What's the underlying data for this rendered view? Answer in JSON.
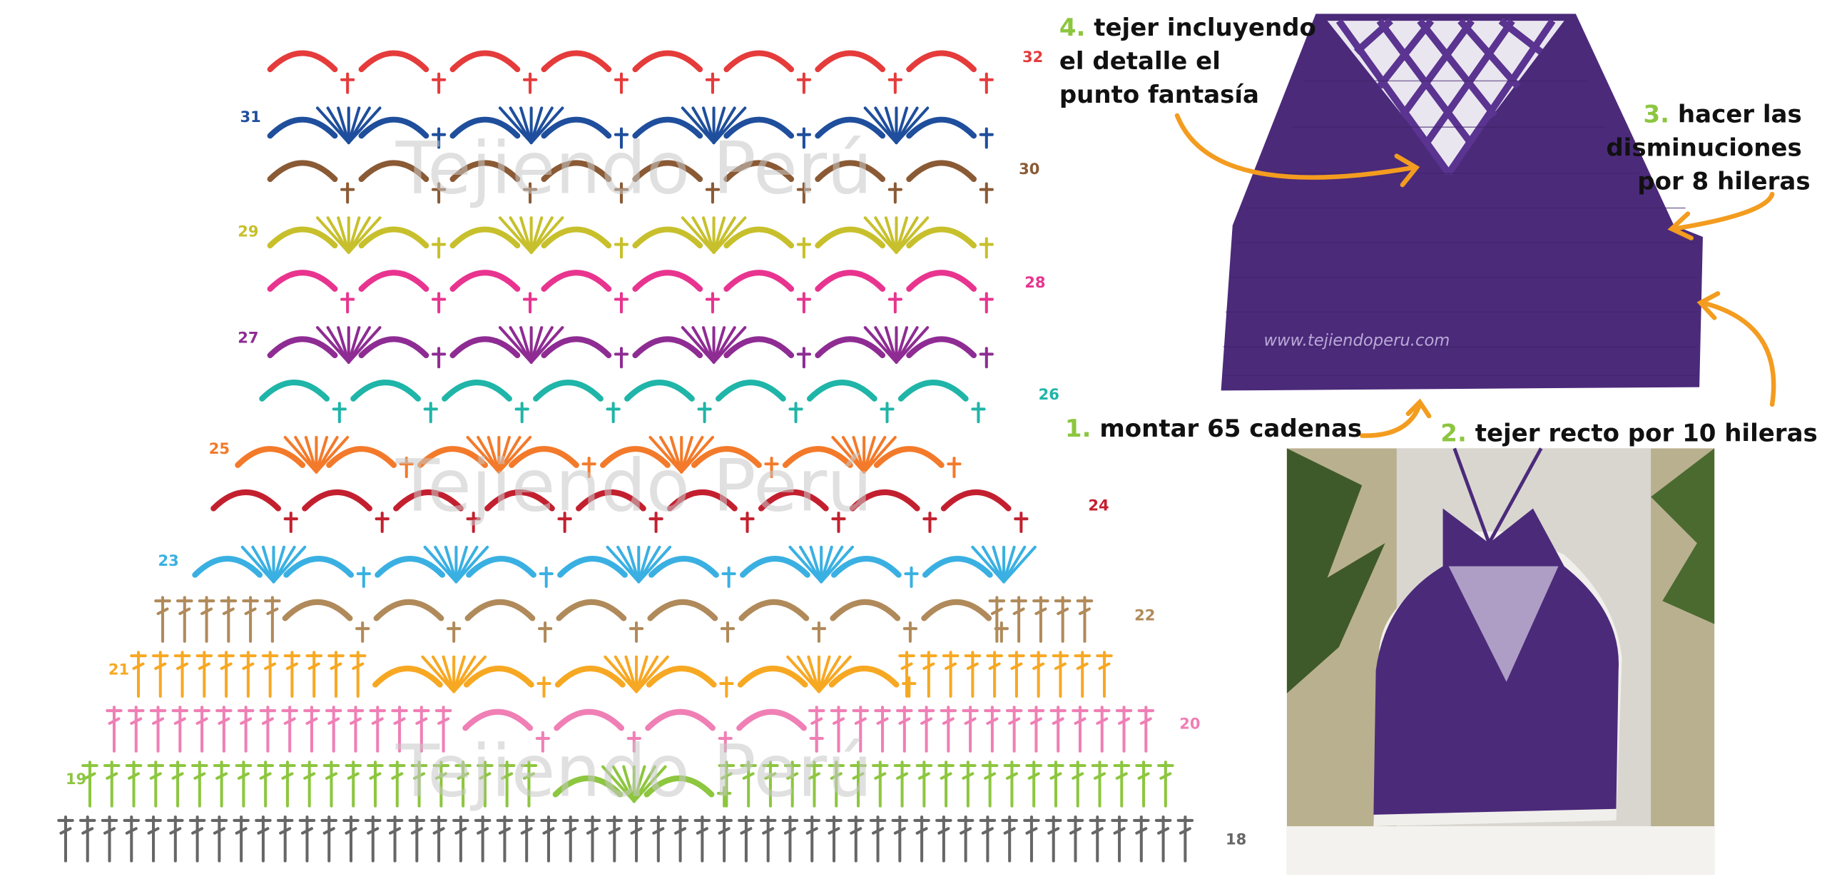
{
  "diagram": {
    "watermark": "Tejiendo Perú",
    "row_labels": [
      "18",
      "19",
      "20",
      "21",
      "22",
      "23",
      "24",
      "25",
      "26",
      "27",
      "28",
      "29",
      "30",
      "31",
      "32"
    ]
  },
  "photo": {
    "watermark": "www.tejiendoperu.com"
  },
  "steps": [
    {
      "number": "1.",
      "text": "montar 65 cadenas"
    },
    {
      "number": "2.",
      "text": "tejer recto por 10 hileras"
    },
    {
      "number": "3.",
      "lines": [
        "hacer las",
        "disminuciones",
        "por 8 hileras"
      ]
    },
    {
      "number": "4.",
      "lines": [
        "tejer incluyendo",
        "el detalle el",
        "punto fantasía"
      ]
    }
  ]
}
